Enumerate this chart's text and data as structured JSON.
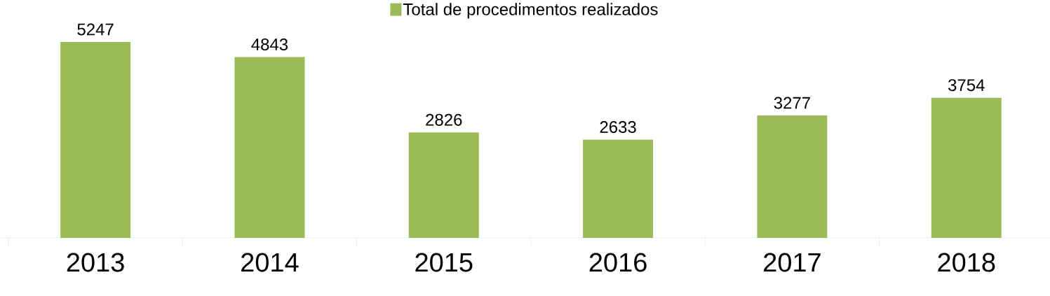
{
  "chart_data": {
    "type": "bar",
    "categories": [
      "2013",
      "2014",
      "2015",
      "2016",
      "2017",
      "2018"
    ],
    "series": [
      {
        "name": "Total de procedimentos realizados",
        "color": "#9bbb59",
        "values": [
          5247,
          4843,
          2826,
          2633,
          3277,
          3754
        ]
      }
    ],
    "data_labels": true,
    "legend": "top",
    "tick_labels": "x"
  }
}
